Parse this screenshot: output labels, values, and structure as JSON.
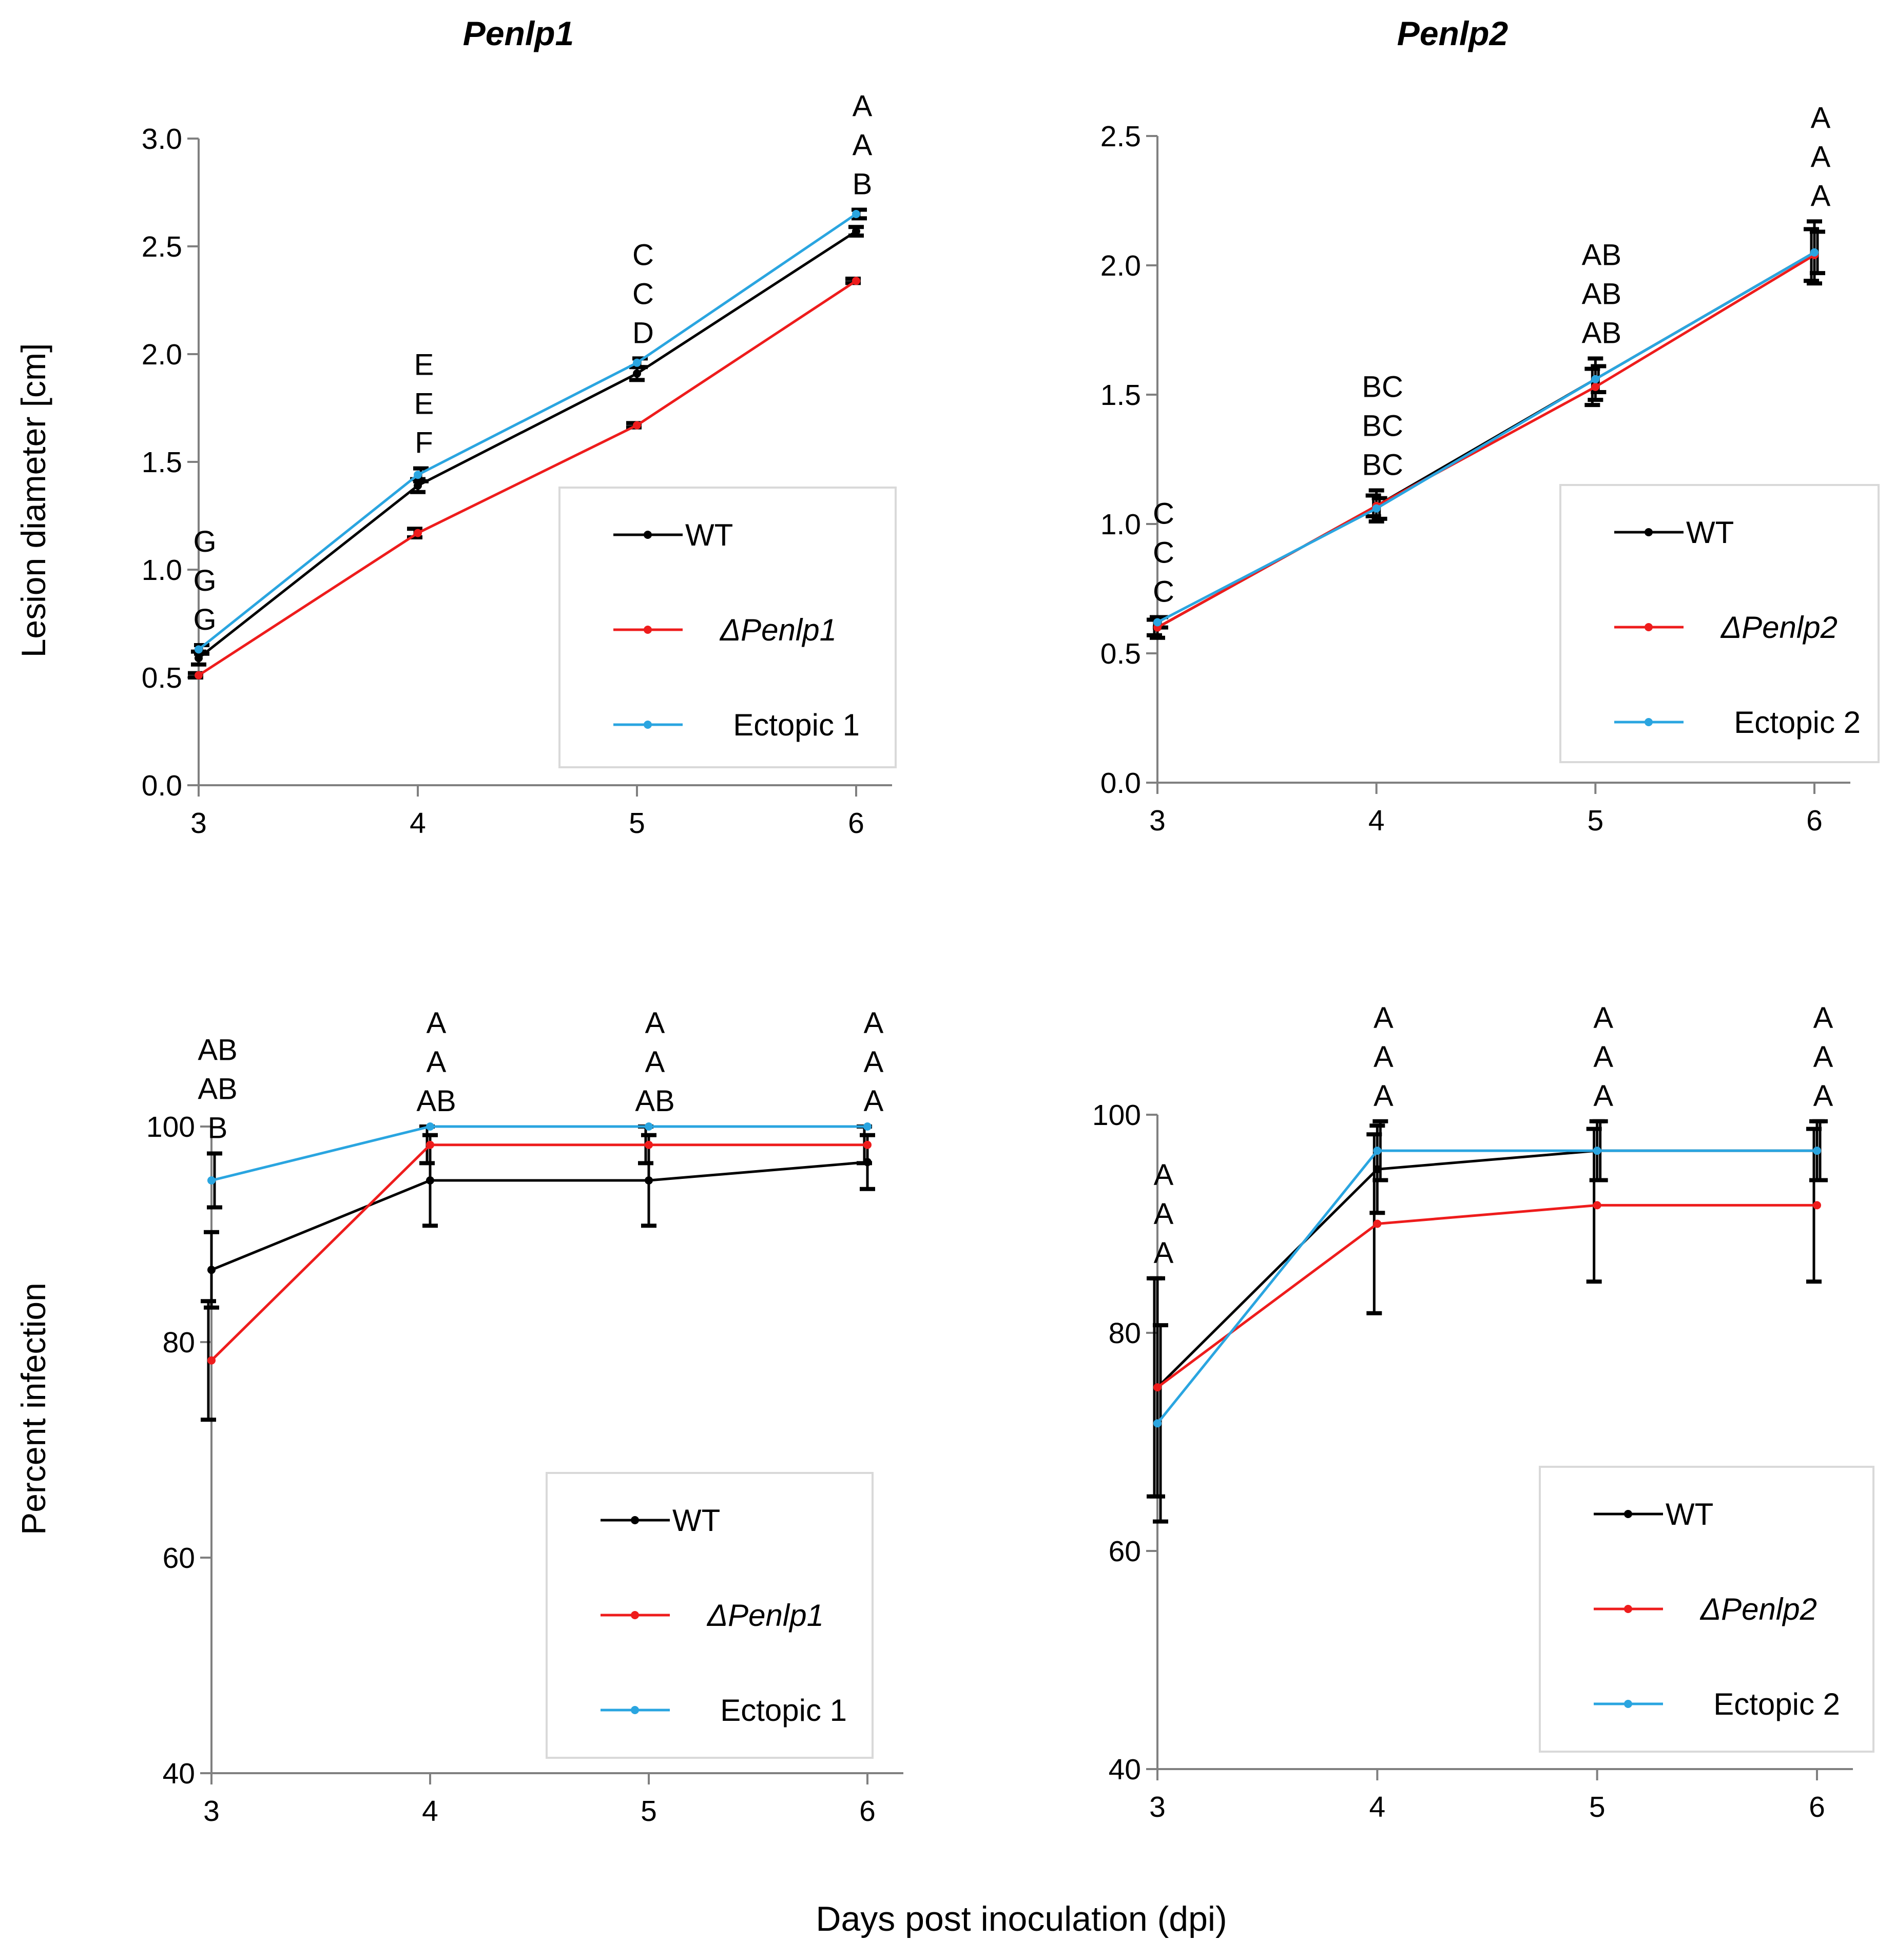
{
  "figure": {
    "shared_xlabel": "Days post inoculation (dpi)",
    "ylabel_top": "Lesion diameter [cm]",
    "ylabel_bottom": "Percent infection"
  },
  "colors": {
    "WT": "#000000",
    "mutant": "#ee1c1c",
    "ectopic": "#2aa5e0",
    "legend_border": "#d9d9d9",
    "axis": "#808080"
  },
  "chart_data": [
    {
      "id": "p1-lesion",
      "type": "line",
      "title": "Penlp1",
      "xlabel": "",
      "ylabel": "Lesion diameter [cm]",
      "x": [
        3,
        4,
        5,
        6
      ],
      "xlim": [
        3,
        6
      ],
      "ylim": [
        0,
        3
      ],
      "yticks": [
        "0.0",
        "0.5",
        "1.0",
        "1.5",
        "2.0",
        "2.5",
        "3.0"
      ],
      "xticks": [
        "3",
        "4",
        "5",
        "6"
      ],
      "series": [
        {
          "name": "WT",
          "color_key": "WT",
          "values": [
            0.59,
            1.39,
            1.91,
            2.57
          ],
          "errors": [
            0.03,
            0.03,
            0.03,
            0.02
          ]
        },
        {
          "name": "ΔPenlp1",
          "color_key": "mutant",
          "italic": true,
          "values": [
            0.51,
            1.17,
            1.67,
            2.34
          ],
          "errors": [
            0.01,
            0.02,
            0.01,
            0.01
          ]
        },
        {
          "name": "Ectopic 1",
          "color_key": "ectopic",
          "values": [
            0.63,
            1.44,
            1.96,
            2.65
          ],
          "errors": [
            0.02,
            0.03,
            0.02,
            0.02
          ]
        }
      ],
      "letters": [
        [
          "G",
          "G",
          "G"
        ],
        [
          "E",
          "E",
          "F"
        ],
        [
          "C",
          "C",
          "D"
        ],
        [
          "A",
          "A",
          "B"
        ]
      ],
      "legend_position": "bottom-right"
    },
    {
      "id": "p2-lesion",
      "type": "line",
      "title": "Penlp2",
      "xlabel": "",
      "ylabel": "",
      "x": [
        3,
        4,
        5,
        6
      ],
      "xlim": [
        3,
        6
      ],
      "ylim": [
        0,
        2.5
      ],
      "yticks": [
        "0.0",
        "0.5",
        "1.0",
        "1.5",
        "2.0",
        "2.5"
      ],
      "xticks": [
        "3",
        "4",
        "5",
        "6"
      ],
      "series": [
        {
          "name": "WT",
          "color_key": "WT",
          "values": [
            0.6,
            1.07,
            1.56,
            2.05
          ],
          "errors": [
            0.04,
            0.06,
            0.08,
            0.12
          ]
        },
        {
          "name": "ΔPenlp2",
          "color_key": "mutant",
          "italic": true,
          "values": [
            0.6,
            1.07,
            1.53,
            2.04
          ],
          "errors": [
            0.03,
            0.04,
            0.07,
            0.1
          ]
        },
        {
          "name": "Ectopic 2",
          "color_key": "ectopic",
          "values": [
            0.62,
            1.06,
            1.56,
            2.05
          ],
          "errors": [
            0.02,
            0.04,
            0.05,
            0.08
          ]
        }
      ],
      "letters": [
        [
          "C",
          "C",
          "C"
        ],
        [
          "BC",
          "BC",
          "BC"
        ],
        [
          "AB",
          "AB",
          "AB"
        ],
        [
          "A",
          "A",
          "A"
        ]
      ],
      "legend_position": "bottom-right"
    },
    {
      "id": "p1-infection",
      "type": "line",
      "title": "",
      "xlabel": "",
      "ylabel": "Percent infection",
      "x": [
        3,
        4,
        5,
        6
      ],
      "xlim": [
        3,
        6
      ],
      "ylim": [
        40,
        100
      ],
      "yticks": [
        "40",
        "60",
        "80",
        "100"
      ],
      "xticks": [
        "3",
        "4",
        "5",
        "6"
      ],
      "series": [
        {
          "name": "WT",
          "color_key": "WT",
          "values": [
            86.7,
            95.0,
            95.0,
            96.7
          ],
          "errors": [
            3.5,
            4.2,
            4.2,
            2.5
          ]
        },
        {
          "name": "ΔPenlp1",
          "color_key": "mutant",
          "values": [
            78.3,
            98.3,
            98.3,
            98.3
          ],
          "errors": [
            5.5,
            1.7,
            1.7,
            1.7
          ]
        },
        {
          "name": "Ectopic 1",
          "color_key": "ectopic",
          "values": [
            95.0,
            100.0,
            100.0,
            100.0
          ],
          "errors": [
            2.5,
            0,
            0,
            0
          ]
        }
      ],
      "legend_labels": [
        "WT",
        "ΔPenlp1",
        "Ectopic 1"
      ],
      "letters": [
        [
          "AB",
          "AB",
          "B"
        ],
        [
          "A",
          "A",
          "AB"
        ],
        [
          "A",
          "A",
          "AB"
        ],
        [
          "A",
          "A",
          "A"
        ]
      ],
      "legend_position": "bottom-right"
    },
    {
      "id": "p2-infection",
      "type": "line",
      "title": "",
      "xlabel": "",
      "ylabel": "",
      "x": [
        3,
        4,
        5,
        6
      ],
      "xlim": [
        3,
        6
      ],
      "ylim": [
        40,
        100
      ],
      "yticks": [
        "40",
        "60",
        "80",
        "100"
      ],
      "xticks": [
        "3",
        "4",
        "5",
        "6"
      ],
      "series": [
        {
          "name": "WT",
          "color_key": "WT",
          "values": [
            75.0,
            95.0,
            96.7,
            96.7
          ],
          "errors": [
            10.0,
            4.0,
            2.7,
            2.7
          ]
        },
        {
          "name": "ΔPenlp2",
          "color_key": "mutant",
          "values": [
            75.0,
            90.0,
            91.7,
            91.7
          ],
          "errors": [
            10.0,
            8.2,
            7.0,
            7.0
          ]
        },
        {
          "name": "Ectopic 2",
          "color_key": "ectopic",
          "values": [
            71.7,
            96.7,
            96.7,
            96.7
          ],
          "errors": [
            9.0,
            2.7,
            2.7,
            2.7
          ]
        }
      ],
      "legend_labels": [
        "WT",
        "ΔPenlp2",
        "Ectopic 2"
      ],
      "letters": [
        [
          "A",
          "A",
          "A"
        ],
        [
          "A",
          "A",
          "A"
        ],
        [
          "A",
          "A",
          "A"
        ],
        [
          "A",
          "A",
          "A"
        ]
      ],
      "legend_position": "bottom-right"
    }
  ]
}
